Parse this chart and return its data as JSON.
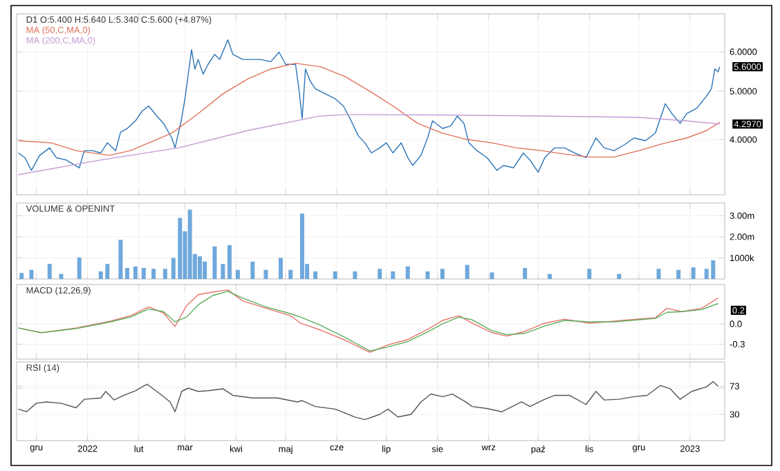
{
  "chart_data": [
    {
      "type": "line",
      "title": "D1 O:5.400 H:5.640 L:5.340 C:5.600 (+4.87%)",
      "log": true,
      "grid": true,
      "legend": "top left",
      "tick_labels": "y",
      "xlim": [
        "2021-11-19",
        "2023-01-22"
      ],
      "xticks": [
        {
          "value": "2021-12-01",
          "label": null
        },
        {
          "value": "2022-01-01",
          "label": null
        },
        {
          "value": "2022-02-01",
          "label": null
        },
        {
          "value": "2022-03-01",
          "label": null
        },
        {
          "value": "2022-04-01",
          "label": null
        },
        {
          "value": "2022-05-01",
          "label": null
        },
        {
          "value": "2022-06-01",
          "label": null
        },
        {
          "value": "2022-07-01",
          "label": null
        },
        {
          "value": "2022-08-01",
          "label": null
        },
        {
          "value": "2022-09-01",
          "label": null
        },
        {
          "value": "2022-10-01",
          "label": null
        },
        {
          "value": "2022-11-01",
          "label": null
        },
        {
          "value": "2022-12-01",
          "label": null
        },
        {
          "value": "2023-01-01",
          "label": null
        }
      ],
      "ylim": [
        3.1,
        7.15
      ],
      "yticks": [
        {
          "value": 4,
          "label": "4.0000"
        },
        {
          "value": 5,
          "label": "5.0000"
        },
        {
          "value": 6,
          "label": "6.0000"
        }
      ],
      "series": [
        {
          "color": "#2b73b6",
          "x": [
            "2021-11-20",
            "2021-11-24",
            "2021-11-28",
            "2021-12-03",
            "2021-12-09",
            "2021-12-13",
            "2021-12-19",
            "2021-12-27",
            "2021-12-30",
            "2022-01-04",
            "2022-01-09",
            "2022-01-13",
            "2022-01-18",
            "2022-01-21",
            "2022-01-25",
            "2022-01-30",
            "2022-02-03",
            "2022-02-07",
            "2022-02-12",
            "2022-02-16",
            "2022-02-21",
            "2022-02-23",
            "2022-02-25",
            "2022-02-27",
            "2022-03-01",
            "2022-03-03",
            "2022-03-05",
            "2022-03-07",
            "2022-03-09",
            "2022-03-12",
            "2022-03-15",
            "2022-03-19",
            "2022-03-22",
            "2022-03-27",
            "2022-03-30",
            "2022-04-05",
            "2022-04-11",
            "2022-04-16",
            "2022-04-22",
            "2022-04-27",
            "2022-05-01",
            "2022-05-07",
            "2022-05-09",
            "2022-05-11",
            "2022-05-13",
            "2022-05-16",
            "2022-05-19",
            "2022-05-25",
            "2022-05-31",
            "2022-06-05",
            "2022-06-09",
            "2022-06-14",
            "2022-06-18",
            "2022-06-22",
            "2022-06-27",
            "2022-07-01",
            "2022-07-05",
            "2022-07-10",
            "2022-07-14",
            "2022-07-17",
            "2022-07-22",
            "2022-07-26",
            "2022-07-29",
            "2022-08-04",
            "2022-08-09",
            "2022-08-13",
            "2022-08-17",
            "2022-08-20",
            "2022-08-25",
            "2022-08-31",
            "2022-09-06",
            "2022-09-10",
            "2022-09-16",
            "2022-09-22",
            "2022-09-26",
            "2022-10-01",
            "2022-10-05",
            "2022-10-11",
            "2022-10-17",
            "2022-10-23",
            "2022-10-30",
            "2022-11-05",
            "2022-11-10",
            "2022-11-16",
            "2022-11-22",
            "2022-11-28",
            "2022-12-05",
            "2022-12-11",
            "2022-12-17",
            "2022-12-21",
            "2022-12-26",
            "2022-12-30",
            "2023-01-05",
            "2023-01-11",
            "2023-01-14",
            "2023-01-16",
            "2023-01-18",
            "2023-01-19"
          ],
          "values": [
            3.76,
            3.68,
            3.47,
            3.72,
            3.85,
            3.68,
            3.64,
            3.51,
            3.8,
            3.8,
            3.76,
            3.94,
            3.8,
            4.14,
            4.21,
            4.36,
            4.56,
            4.67,
            4.46,
            4.31,
            4.03,
            3.85,
            4.12,
            4.41,
            4.83,
            5.41,
            6.06,
            5.54,
            5.79,
            5.41,
            5.66,
            5.93,
            5.79,
            6.34,
            5.93,
            5.79,
            5.79,
            5.79,
            5.73,
            5.99,
            5.66,
            5.66,
            5.06,
            4.41,
            5.54,
            5.23,
            5.06,
            4.94,
            4.83,
            4.67,
            4.41,
            4.07,
            3.94,
            3.76,
            3.85,
            3.94,
            3.76,
            3.94,
            3.68,
            3.55,
            3.72,
            4.03,
            4.36,
            4.21,
            4.26,
            4.46,
            4.31,
            3.94,
            3.8,
            3.68,
            3.47,
            3.55,
            3.51,
            3.76,
            3.64,
            3.44,
            3.68,
            3.85,
            3.85,
            3.76,
            3.68,
            4.03,
            3.85,
            3.8,
            3.9,
            4.03,
            3.98,
            4.12,
            4.72,
            4.51,
            4.31,
            4.51,
            4.62,
            4.89,
            5.06,
            5.54,
            5.47,
            5.6
          ]
        },
        {
          "name": "MA (50,C,MA,0)",
          "color": "#e0705a",
          "x": [
            "2021-11-20",
            "2021-12-10",
            "2021-12-25",
            "2022-01-14",
            "2022-01-27",
            "2022-02-07",
            "2022-02-21",
            "2022-03-09",
            "2022-03-24",
            "2022-04-08",
            "2022-04-22",
            "2022-05-07",
            "2022-05-22",
            "2022-06-06",
            "2022-06-21",
            "2022-07-05",
            "2022-07-20",
            "2022-08-04",
            "2022-08-19",
            "2022-09-03",
            "2022-09-18",
            "2022-10-03",
            "2022-10-17",
            "2022-11-01",
            "2022-11-16",
            "2022-12-01",
            "2022-12-15",
            "2022-12-30",
            "2023-01-11",
            "2023-01-19"
          ],
          "values": [
            3.98,
            3.94,
            3.8,
            3.72,
            3.8,
            3.94,
            4.12,
            4.51,
            4.94,
            5.29,
            5.54,
            5.69,
            5.6,
            5.35,
            5.0,
            4.67,
            4.31,
            4.12,
            4.0,
            3.94,
            3.85,
            3.8,
            3.74,
            3.69,
            3.69,
            3.8,
            3.92,
            4.03,
            4.17,
            4.33
          ]
        },
        {
          "name": "MA (200,C,MA,0)",
          "color": "#c39bd3",
          "x": [
            "2021-11-20",
            "2022-01-09",
            "2022-02-25",
            "2022-04-08",
            "2022-05-22",
            "2022-06-06",
            "2022-08-04",
            "2022-10-03",
            "2022-12-01",
            "2022-12-30",
            "2023-01-19"
          ],
          "values": [
            3.4,
            3.64,
            3.85,
            4.17,
            4.46,
            4.49,
            4.48,
            4.46,
            4.43,
            4.36,
            4.297
          ]
        }
      ],
      "annotations": [
        {
          "text": "5.6000",
          "x": "2023-01-19",
          "y": 5.6
        },
        {
          "text": "4.2970",
          "x": "2023-01-19",
          "y": 4.297
        }
      ]
    },
    {
      "type": "bar",
      "title": "VOLUME & OPENINT",
      "grid": true,
      "tick_labels": "y",
      "xlim": [
        "2021-11-19",
        "2023-01-22"
      ],
      "xticks": [
        {
          "value": "2021-12-01",
          "label": null
        },
        {
          "value": "2022-01-01",
          "label": null
        },
        {
          "value": "2022-02-01",
          "label": null
        },
        {
          "value": "2022-03-01",
          "label": null
        },
        {
          "value": "2022-04-01",
          "label": null
        },
        {
          "value": "2022-05-01",
          "label": null
        },
        {
          "value": "2022-06-01",
          "label": null
        },
        {
          "value": "2022-07-01",
          "label": null
        },
        {
          "value": "2022-08-01",
          "label": null
        },
        {
          "value": "2022-09-01",
          "label": null
        },
        {
          "value": "2022-10-01",
          "label": null
        },
        {
          "value": "2022-11-01",
          "label": null
        },
        {
          "value": "2022-12-01",
          "label": null
        },
        {
          "value": "2023-01-01",
          "label": null
        }
      ],
      "ylim": [
        0,
        3600000
      ],
      "yticks": [
        {
          "value": 1000000,
          "label": "1000k"
        },
        {
          "value": 2000000,
          "label": "2.00m"
        },
        {
          "value": 3000000,
          "label": "3.00m"
        }
      ],
      "series": [
        {
          "color": "#6fa8dc",
          "x": [
            "2021-11-22",
            "2021-11-28",
            "2021-12-09",
            "2021-12-16",
            "2021-12-27",
            "2022-01-09",
            "2022-01-13",
            "2022-01-21",
            "2022-01-25",
            "2022-01-30",
            "2022-02-04",
            "2022-02-10",
            "2022-02-17",
            "2022-02-22",
            "2022-02-26",
            "2022-03-01",
            "2022-03-04",
            "2022-03-07",
            "2022-03-10",
            "2022-03-13",
            "2022-03-19",
            "2022-03-24",
            "2022-03-28",
            "2022-04-02",
            "2022-04-11",
            "2022-04-19",
            "2022-04-28",
            "2022-05-04",
            "2022-05-11",
            "2022-05-14",
            "2022-05-19",
            "2022-05-31",
            "2022-06-12",
            "2022-06-27",
            "2022-07-05",
            "2022-07-14",
            "2022-07-26",
            "2022-08-04",
            "2022-08-19",
            "2022-09-03",
            "2022-09-23",
            "2022-10-08",
            "2022-11-01",
            "2022-11-19",
            "2022-12-13",
            "2022-12-25",
            "2023-01-03",
            "2023-01-11",
            "2023-01-15"
          ],
          "values": [
            290000,
            430000,
            710000,
            240000,
            1020000,
            360000,
            710000,
            1860000,
            520000,
            600000,
            520000,
            480000,
            480000,
            1000000,
            2900000,
            2260000,
            3290000,
            1190000,
            1070000,
            830000,
            1550000,
            710000,
            1600000,
            430000,
            830000,
            430000,
            1000000,
            430000,
            3100000,
            710000,
            360000,
            360000,
            360000,
            480000,
            360000,
            600000,
            360000,
            480000,
            670000,
            310000,
            520000,
            240000,
            480000,
            240000,
            480000,
            430000,
            550000,
            480000,
            880000
          ]
        }
      ]
    },
    {
      "type": "line",
      "title": "MACD (12,26,9)",
      "grid": true,
      "tick_labels": "y",
      "xlim": [
        "2021-11-19",
        "2023-01-22"
      ],
      "xticks": [
        {
          "value": "2021-12-01",
          "label": null
        },
        {
          "value": "2022-01-01",
          "label": null
        },
        {
          "value": "2022-02-01",
          "label": null
        },
        {
          "value": "2022-03-01",
          "label": null
        },
        {
          "value": "2022-04-01",
          "label": null
        },
        {
          "value": "2022-05-01",
          "label": null
        },
        {
          "value": "2022-06-01",
          "label": null
        },
        {
          "value": "2022-07-01",
          "label": null
        },
        {
          "value": "2022-08-01",
          "label": null
        },
        {
          "value": "2022-09-01",
          "label": null
        },
        {
          "value": "2022-10-01",
          "label": null
        },
        {
          "value": "2022-11-01",
          "label": null
        },
        {
          "value": "2022-12-01",
          "label": null
        },
        {
          "value": "2023-01-01",
          "label": null
        }
      ],
      "ylim": [
        -0.52,
        0.58
      ],
      "yticks": [
        {
          "value": -0.3,
          "label": "-0.3"
        },
        {
          "value": 0,
          "label": "0.0"
        }
      ],
      "x": [
        "2021-11-20",
        "2021-12-04",
        "2021-12-25",
        "2022-01-15",
        "2022-01-27",
        "2022-02-07",
        "2022-02-16",
        "2022-02-23",
        "2022-03-02",
        "2022-03-09",
        "2022-03-18",
        "2022-03-27",
        "2022-04-05",
        "2022-04-19",
        "2022-05-04",
        "2022-05-10",
        "2022-05-22",
        "2022-06-06",
        "2022-06-21",
        "2022-07-02",
        "2022-07-14",
        "2022-07-26",
        "2022-08-04",
        "2022-08-14",
        "2022-08-22",
        "2022-09-03",
        "2022-09-12",
        "2022-09-23",
        "2022-10-05",
        "2022-10-17",
        "2022-11-01",
        "2022-11-16",
        "2022-12-01",
        "2022-12-11",
        "2022-12-18",
        "2022-12-27",
        "2023-01-08",
        "2023-01-18"
      ],
      "series": [
        {
          "color": "#e8736b",
          "values": [
            -0.06,
            -0.13,
            -0.06,
            0.04,
            0.12,
            0.25,
            0.16,
            -0.04,
            0.27,
            0.43,
            0.47,
            0.5,
            0.34,
            0.23,
            0.12,
            0.01,
            -0.09,
            -0.24,
            -0.42,
            -0.31,
            -0.23,
            -0.08,
            0.05,
            0.12,
            0.01,
            -0.13,
            -0.18,
            -0.11,
            0.01,
            0.07,
            0.01,
            0.04,
            0.07,
            0.09,
            0.23,
            0.18,
            0.23,
            0.38
          ]
        },
        {
          "color": "#5cae5c",
          "values": [
            -0.06,
            -0.13,
            -0.07,
            0.03,
            0.1,
            0.22,
            0.18,
            0.03,
            0.1,
            0.28,
            0.42,
            0.48,
            0.38,
            0.25,
            0.15,
            0.1,
            -0.02,
            -0.2,
            -0.4,
            -0.34,
            -0.26,
            -0.12,
            0.0,
            0.1,
            0.06,
            -0.1,
            -0.16,
            -0.14,
            -0.03,
            0.05,
            0.03,
            0.03,
            0.06,
            0.08,
            0.17,
            0.18,
            0.21,
            0.3
          ]
        }
      ],
      "annotations": [
        {
          "text": "0.2",
          "x": "2023-01-18",
          "y": 0.2
        }
      ]
    },
    {
      "type": "line",
      "title": "RSI (14)",
      "grid": true,
      "xlim": [
        "2021-11-19",
        "2023-01-22"
      ],
      "xticks": [
        {
          "value": "2021-12-01",
          "label": "gru"
        },
        {
          "value": "2022-01-01",
          "label": "2022"
        },
        {
          "value": "2022-02-01",
          "label": "lut"
        },
        {
          "value": "2022-03-01",
          "label": "mar"
        },
        {
          "value": "2022-04-01",
          "label": "kwi"
        },
        {
          "value": "2022-05-01",
          "label": "maj"
        },
        {
          "value": "2022-06-01",
          "label": "cze"
        },
        {
          "value": "2022-07-01",
          "label": "lip"
        },
        {
          "value": "2022-08-01",
          "label": "sie"
        },
        {
          "value": "2022-09-01",
          "label": "wrz"
        },
        {
          "value": "2022-10-01",
          "label": "paź"
        },
        {
          "value": "2022-11-01",
          "label": "lis"
        },
        {
          "value": "2022-12-01",
          "label": "gru"
        },
        {
          "value": "2023-01-01",
          "label": "2023"
        }
      ],
      "ylim": [
        -10,
        110
      ],
      "yticks": [
        {
          "value": 30,
          "label": "30"
        },
        {
          "value": 70,
          "label": null
        },
        {
          "value": 73,
          "label": "73"
        }
      ],
      "series": [
        {
          "color": "#555555",
          "x": [
            "2021-11-20",
            "2021-11-25",
            "2021-12-01",
            "2021-12-07",
            "2021-12-16",
            "2021-12-25",
            "2021-12-30",
            "2022-01-09",
            "2022-01-12",
            "2022-01-17",
            "2022-01-23",
            "2022-01-30",
            "2022-02-06",
            "2022-02-14",
            "2022-02-20",
            "2022-02-23",
            "2022-02-27",
            "2022-03-03",
            "2022-03-09",
            "2022-03-15",
            "2022-03-24",
            "2022-03-30",
            "2022-04-11",
            "2022-04-26",
            "2022-05-08",
            "2022-05-11",
            "2022-05-19",
            "2022-05-31",
            "2022-06-12",
            "2022-06-18",
            "2022-06-27",
            "2022-07-02",
            "2022-07-08",
            "2022-07-16",
            "2022-07-22",
            "2022-07-28",
            "2022-08-04",
            "2022-08-10",
            "2022-08-18",
            "2022-08-22",
            "2022-08-31",
            "2022-09-09",
            "2022-09-21",
            "2022-09-26",
            "2022-10-05",
            "2022-10-11",
            "2022-10-20",
            "2022-10-30",
            "2022-11-05",
            "2022-11-10",
            "2022-11-19",
            "2022-11-28",
            "2022-12-06",
            "2022-12-14",
            "2022-12-20",
            "2022-12-26",
            "2023-01-02",
            "2023-01-11",
            "2023-01-15",
            "2023-01-18"
          ],
          "values": [
            38,
            34,
            47,
            49,
            47,
            40,
            53,
            55,
            65,
            52,
            59,
            66,
            76,
            61,
            49,
            34,
            65,
            70,
            65,
            66,
            69,
            59,
            55,
            55,
            49,
            51,
            42,
            38,
            26,
            22,
            30,
            38,
            26,
            30,
            49,
            61,
            57,
            61,
            49,
            42,
            39,
            34,
            49,
            42,
            53,
            59,
            59,
            45,
            65,
            52,
            53,
            57,
            59,
            74,
            69,
            53,
            65,
            72,
            80,
            73
          ]
        }
      ]
    }
  ]
}
